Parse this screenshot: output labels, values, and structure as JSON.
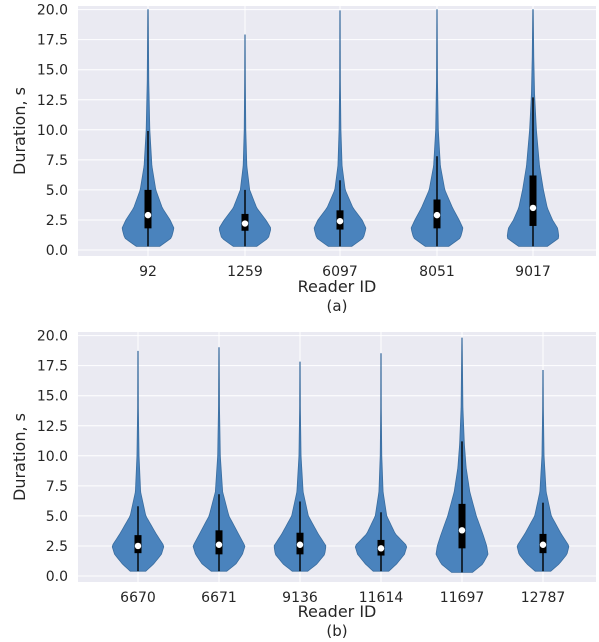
{
  "colors": {
    "plot_background": "#eaeaf2",
    "grid": "#ffffff",
    "violin_fill": "#4a83bd",
    "violin_edge": "#3a6d9f",
    "box": "#000000",
    "median": "#ffffff"
  },
  "chart_data": [
    {
      "type": "violin",
      "caption": "(a)",
      "xlabel": "Reader ID",
      "ylabel": "Duration, s",
      "ylim": [
        -0.5,
        20.3
      ],
      "yticks": [
        0.0,
        2.5,
        5.0,
        7.5,
        10.0,
        12.5,
        15.0,
        17.5,
        20.0
      ],
      "ytick_labels": [
        "0.0",
        "2.5",
        "5.0",
        "7.5",
        "10.0",
        "12.5",
        "15.0",
        "17.5",
        "20.0"
      ],
      "grid": true,
      "categories": [
        "92",
        "1259",
        "6097",
        "8051",
        "9017"
      ],
      "series": [
        {
          "category": "92",
          "min": 0.3,
          "max": 20.0,
          "q1": 1.8,
          "median": 2.9,
          "q3": 5.0,
          "whisker_high": 9.9,
          "density": [
            [
              0.3,
              0.45
            ],
            [
              1.0,
              0.9
            ],
            [
              1.8,
              1.0
            ],
            [
              2.5,
              0.85
            ],
            [
              3.5,
              0.55
            ],
            [
              5.0,
              0.3
            ],
            [
              7.0,
              0.15
            ],
            [
              10.0,
              0.07
            ],
            [
              14.0,
              0.03
            ],
            [
              20.0,
              0.01
            ]
          ]
        },
        {
          "category": "1259",
          "min": 0.3,
          "max": 17.9,
          "q1": 1.6,
          "median": 2.2,
          "q3": 3.0,
          "whisker_high": 5.0,
          "density": [
            [
              0.3,
              0.45
            ],
            [
              1.0,
              0.9
            ],
            [
              1.8,
              1.0
            ],
            [
              2.5,
              0.8
            ],
            [
              3.5,
              0.45
            ],
            [
              5.0,
              0.18
            ],
            [
              7.0,
              0.07
            ],
            [
              10.0,
              0.03
            ],
            [
              14.0,
              0.015
            ],
            [
              17.9,
              0.008
            ]
          ]
        },
        {
          "category": "6097",
          "min": 0.3,
          "max": 19.9,
          "q1": 1.7,
          "median": 2.4,
          "q3": 3.3,
          "whisker_high": 5.8,
          "density": [
            [
              0.3,
              0.45
            ],
            [
              1.0,
              0.9
            ],
            [
              1.8,
              1.0
            ],
            [
              2.5,
              0.85
            ],
            [
              3.5,
              0.5
            ],
            [
              5.0,
              0.2
            ],
            [
              7.0,
              0.08
            ],
            [
              10.0,
              0.035
            ],
            [
              14.0,
              0.015
            ],
            [
              19.9,
              0.008
            ]
          ]
        },
        {
          "category": "8051",
          "min": 0.3,
          "max": 20.0,
          "q1": 1.8,
          "median": 2.9,
          "q3": 4.2,
          "whisker_high": 7.8,
          "density": [
            [
              0.3,
              0.45
            ],
            [
              1.0,
              0.9
            ],
            [
              1.8,
              1.0
            ],
            [
              2.5,
              0.85
            ],
            [
              3.5,
              0.6
            ],
            [
              5.0,
              0.3
            ],
            [
              7.0,
              0.13
            ],
            [
              10.0,
              0.05
            ],
            [
              14.0,
              0.02
            ],
            [
              20.0,
              0.008
            ]
          ]
        },
        {
          "category": "9017",
          "min": 0.3,
          "max": 20.0,
          "q1": 2.0,
          "median": 3.5,
          "q3": 6.2,
          "whisker_high": 12.7,
          "density": [
            [
              0.3,
              0.55
            ],
            [
              1.0,
              1.0
            ],
            [
              1.8,
              0.95
            ],
            [
              2.5,
              0.75
            ],
            [
              3.5,
              0.55
            ],
            [
              5.0,
              0.4
            ],
            [
              7.0,
              0.25
            ],
            [
              10.0,
              0.13
            ],
            [
              13.0,
              0.06
            ],
            [
              16.0,
              0.03
            ],
            [
              20.0,
              0.01
            ]
          ]
        }
      ]
    },
    {
      "type": "violin",
      "caption": "(b)",
      "xlabel": "Reader ID",
      "ylabel": "Duration, s",
      "ylim": [
        -0.5,
        20.3
      ],
      "yticks": [
        0.0,
        2.5,
        5.0,
        7.5,
        10.0,
        12.5,
        15.0,
        17.5,
        20.0
      ],
      "ytick_labels": [
        "0.0",
        "2.5",
        "5.0",
        "7.5",
        "10.0",
        "12.5",
        "15.0",
        "17.5",
        "20.0"
      ],
      "grid": true,
      "categories": [
        "6670",
        "6671",
        "9136",
        "11614",
        "11697",
        "12787"
      ],
      "series": [
        {
          "category": "6670",
          "min": 0.4,
          "max": 18.7,
          "q1": 1.9,
          "median": 2.5,
          "q3": 3.4,
          "whisker_high": 5.8,
          "density": [
            [
              0.4,
              0.3
            ],
            [
              1.0,
              0.6
            ],
            [
              1.8,
              0.9
            ],
            [
              2.5,
              1.0
            ],
            [
              3.5,
              0.7
            ],
            [
              5.0,
              0.3
            ],
            [
              7.0,
              0.1
            ],
            [
              10.0,
              0.04
            ],
            [
              14.0,
              0.015
            ],
            [
              18.7,
              0.008
            ]
          ]
        },
        {
          "category": "6671",
          "min": 0.4,
          "max": 19.0,
          "q1": 1.8,
          "median": 2.6,
          "q3": 3.8,
          "whisker_high": 6.8,
          "density": [
            [
              0.4,
              0.3
            ],
            [
              1.0,
              0.65
            ],
            [
              1.8,
              0.9
            ],
            [
              2.5,
              1.0
            ],
            [
              3.5,
              0.75
            ],
            [
              5.0,
              0.38
            ],
            [
              7.0,
              0.14
            ],
            [
              10.0,
              0.05
            ],
            [
              14.0,
              0.02
            ],
            [
              19.0,
              0.008
            ]
          ]
        },
        {
          "category": "9136",
          "min": 0.4,
          "max": 17.8,
          "q1": 1.8,
          "median": 2.6,
          "q3": 3.6,
          "whisker_high": 6.2,
          "density": [
            [
              0.4,
              0.3
            ],
            [
              1.0,
              0.65
            ],
            [
              1.8,
              0.95
            ],
            [
              2.5,
              1.0
            ],
            [
              3.5,
              0.7
            ],
            [
              5.0,
              0.32
            ],
            [
              7.0,
              0.12
            ],
            [
              10.0,
              0.04
            ],
            [
              14.0,
              0.015
            ],
            [
              17.8,
              0.008
            ]
          ]
        },
        {
          "category": "11614",
          "min": 0.4,
          "max": 18.5,
          "q1": 1.7,
          "median": 2.3,
          "q3": 3.0,
          "whisker_high": 5.3,
          "density": [
            [
              0.4,
              0.3
            ],
            [
              1.0,
              0.6
            ],
            [
              1.8,
              0.9
            ],
            [
              2.5,
              1.0
            ],
            [
              3.5,
              0.55
            ],
            [
              5.0,
              0.22
            ],
            [
              7.0,
              0.08
            ],
            [
              10.0,
              0.03
            ],
            [
              14.0,
              0.012
            ],
            [
              18.5,
              0.008
            ]
          ]
        },
        {
          "category": "11697",
          "min": 0.3,
          "max": 19.8,
          "q1": 2.3,
          "median": 3.8,
          "q3": 6.0,
          "whisker_high": 11.2,
          "density": [
            [
              0.3,
              0.4
            ],
            [
              1.0,
              0.8
            ],
            [
              1.8,
              1.0
            ],
            [
              2.5,
              0.95
            ],
            [
              3.5,
              0.8
            ],
            [
              5.0,
              0.55
            ],
            [
              7.0,
              0.3
            ],
            [
              9.0,
              0.16
            ],
            [
              11.0,
              0.09
            ],
            [
              14.0,
              0.035
            ],
            [
              19.8,
              0.008
            ]
          ]
        },
        {
          "category": "12787",
          "min": 0.4,
          "max": 17.1,
          "q1": 1.9,
          "median": 2.6,
          "q3": 3.5,
          "whisker_high": 6.1,
          "density": [
            [
              0.4,
              0.3
            ],
            [
              1.0,
              0.62
            ],
            [
              1.8,
              0.92
            ],
            [
              2.5,
              1.0
            ],
            [
              3.5,
              0.7
            ],
            [
              5.0,
              0.32
            ],
            [
              7.0,
              0.12
            ],
            [
              10.0,
              0.04
            ],
            [
              14.0,
              0.015
            ],
            [
              17.1,
              0.008
            ]
          ]
        }
      ]
    }
  ]
}
